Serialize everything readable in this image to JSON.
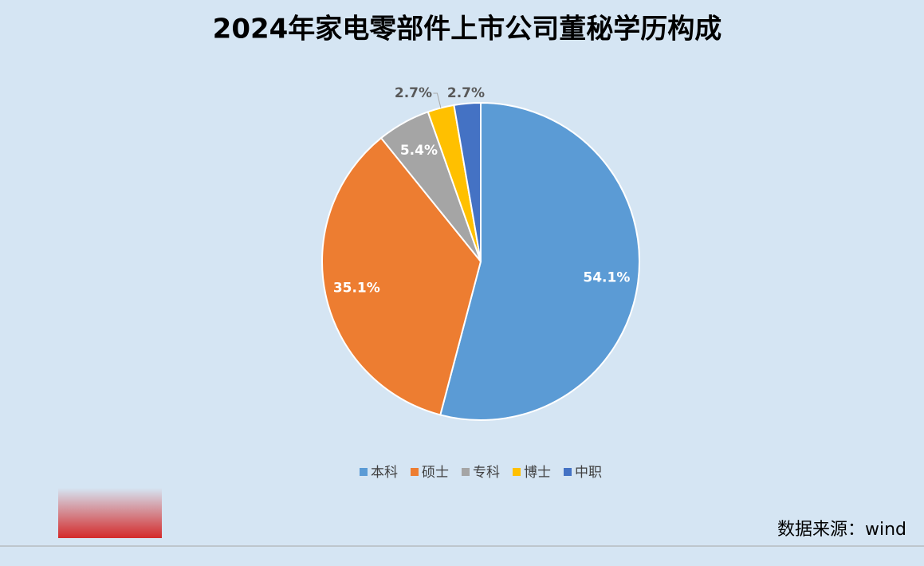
{
  "chart_data": {
    "type": "pie",
    "title": "2024年家电零部件上市公司董秘学历构成",
    "categories": [
      "本科",
      "硕士",
      "专科",
      "博士",
      "中职"
    ],
    "values": [
      54.1,
      35.1,
      5.4,
      2.7,
      2.7
    ],
    "value_labels": [
      "54.1%",
      "35.1%",
      "5.4%",
      "2.7%",
      "2.7%"
    ],
    "colors": [
      "#5b9bd5",
      "#ed7d31",
      "#a5a5a5",
      "#ffc000",
      "#4472c4"
    ],
    "legend": "bottom",
    "source": "数据来源：wind"
  }
}
